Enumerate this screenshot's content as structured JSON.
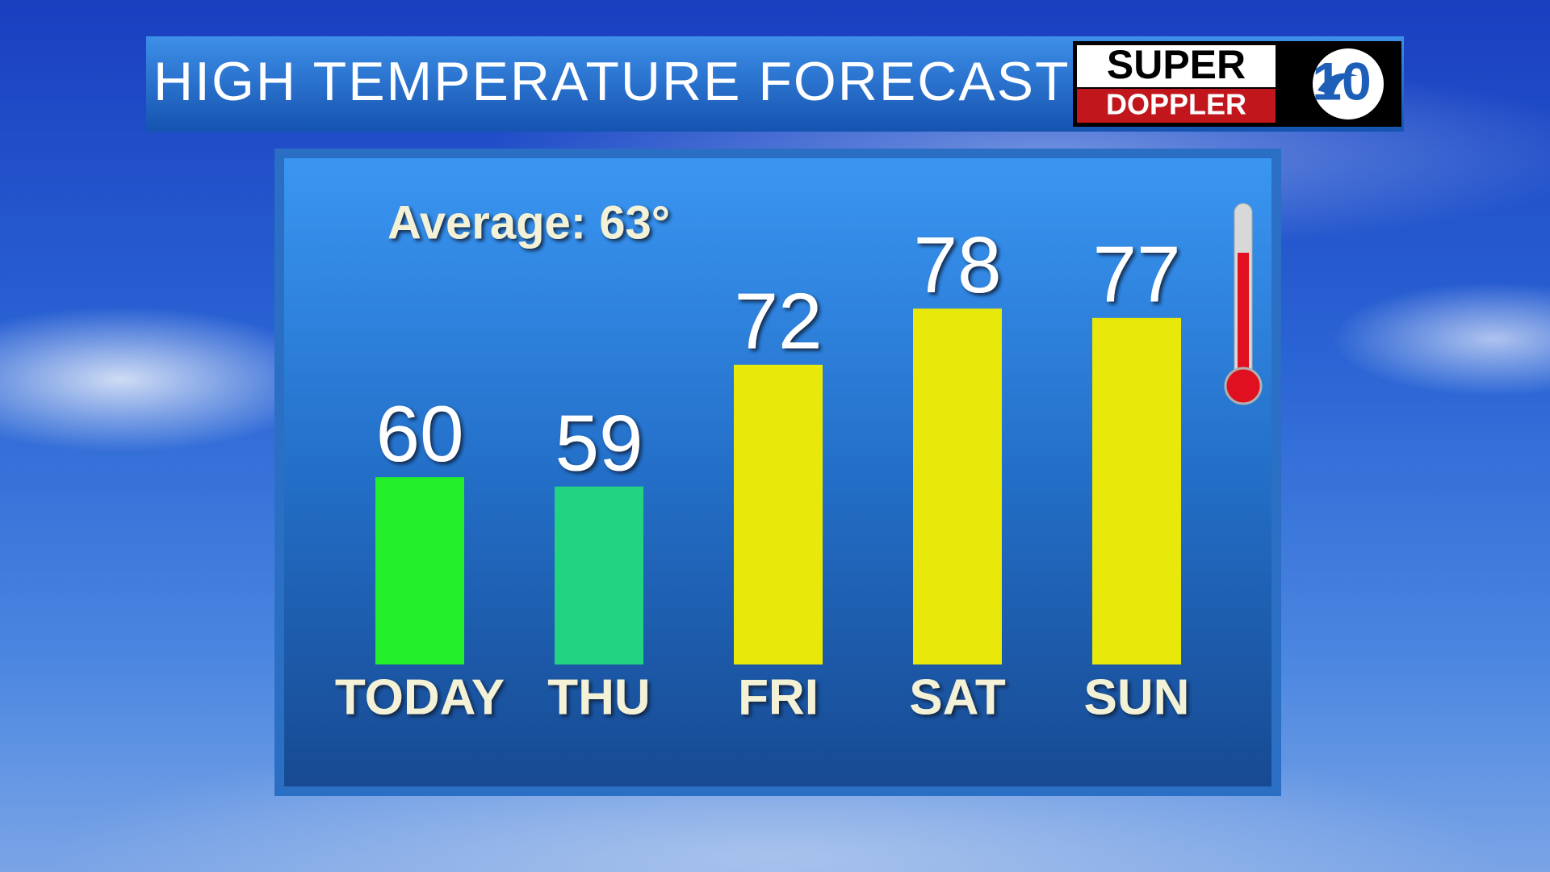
{
  "chart_data": {
    "type": "bar",
    "title": "HIGH TEMPERATURE FORECAST",
    "annotation": "Average: 63°",
    "categories": [
      "TODAY",
      "THU",
      "FRI",
      "SAT",
      "SUN"
    ],
    "values": [
      60,
      59,
      72,
      78,
      77
    ],
    "colors": [
      "#22ee2a",
      "#22d482",
      "#e8e80a",
      "#e8e80a",
      "#e8e80a"
    ],
    "ylim": [
      40,
      80
    ]
  },
  "logo": {
    "line1": "SUPER",
    "line2": "DOPPLER",
    "number": "10"
  }
}
